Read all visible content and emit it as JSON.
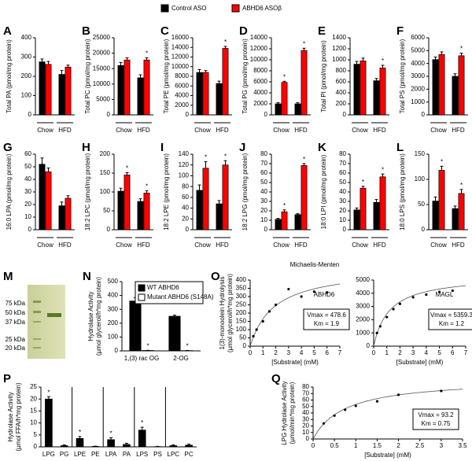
{
  "chart_data": [
    {
      "type": "bar",
      "panel": "A",
      "y_label": [
        "Total PA (pmol/mg protein)"
      ],
      "categories": [
        "Chow",
        "HFD"
      ],
      "series": [
        {
          "name": "Control ASO",
          "color": "#000000",
          "values": [
            275,
            210
          ],
          "errors": [
            15,
            20
          ],
          "significance": [
            null,
            null
          ]
        },
        {
          "name": "ABHD6 ASOβ",
          "color": "#ff0000",
          "values": [
            262,
            248
          ],
          "errors": [
            15,
            10
          ],
          "significance": [
            null,
            null
          ]
        }
      ],
      "ylim": [
        0,
        400
      ],
      "yticks": [
        0,
        100,
        200,
        300,
        400
      ]
    },
    {
      "type": "bar",
      "panel": "B",
      "y_label": [
        "Total PC (pmol/mg protein)"
      ],
      "categories": [
        "Chow",
        "HFD"
      ],
      "series": [
        {
          "name": "Control ASO",
          "color": "#000000",
          "values": [
            16000,
            12000
          ],
          "errors": [
            1000,
            1000
          ],
          "significance": [
            null,
            null
          ]
        },
        {
          "name": "ABHD6 ASOβ",
          "color": "#ff0000",
          "values": [
            17800,
            17800
          ],
          "errors": [
            700,
            700
          ],
          "significance": [
            null,
            "*"
          ]
        }
      ],
      "ylim": [
        0,
        25000
      ],
      "yticks": [
        0,
        5000,
        10000,
        15000,
        20000,
        25000
      ]
    },
    {
      "type": "bar",
      "panel": "C",
      "y_label": [
        "Total PE (pmol/mg protein)"
      ],
      "categories": [
        "Chow",
        "HFD"
      ],
      "series": [
        {
          "name": "Control ASO",
          "color": "#000000",
          "values": [
            8800,
            6500
          ],
          "errors": [
            600,
            500
          ],
          "significance": [
            null,
            null
          ]
        },
        {
          "name": "ABHD6 ASOβ",
          "color": "#ff0000",
          "values": [
            8800,
            13800
          ],
          "errors": [
            400,
            400
          ],
          "significance": [
            null,
            "*"
          ]
        }
      ],
      "ylim": [
        0,
        16000
      ],
      "yticks": [
        0,
        2000,
        4000,
        6000,
        8000,
        10000,
        12000,
        14000,
        16000
      ]
    },
    {
      "type": "bar",
      "panel": "D",
      "y_label": [
        "Total PG (pmol/mg protein)"
      ],
      "categories": [
        "Chow",
        "HFD"
      ],
      "series": [
        {
          "name": "Control ASO",
          "color": "#000000",
          "values": [
            2000,
            2000
          ],
          "errors": [
            200,
            200
          ],
          "significance": [
            null,
            null
          ]
        },
        {
          "name": "ABHD6 ASOβ",
          "color": "#ff0000",
          "values": [
            5900,
            11700
          ],
          "errors": [
            200,
            400
          ],
          "significance": [
            "*",
            "*"
          ]
        }
      ],
      "ylim": [
        0,
        14000
      ],
      "yticks": [
        0,
        2000,
        4000,
        6000,
        8000,
        10000,
        12000,
        14000
      ]
    },
    {
      "type": "bar",
      "panel": "E",
      "y_label": [
        "Total PI (pmol/mg protein)"
      ],
      "categories": [
        "Chow",
        "HFD"
      ],
      "series": [
        {
          "name": "Control ASO",
          "color": "#000000",
          "values": [
            920,
            620
          ],
          "errors": [
            50,
            40
          ],
          "significance": [
            null,
            null
          ]
        },
        {
          "name": "ABHD6 ASOβ",
          "color": "#ff0000",
          "values": [
            980,
            850
          ],
          "errors": [
            50,
            50
          ],
          "significance": [
            null,
            "*"
          ]
        }
      ],
      "ylim": [
        0,
        1400
      ],
      "yticks": [
        0,
        200,
        400,
        600,
        800,
        1000,
        1200,
        1400
      ]
    },
    {
      "type": "bar",
      "panel": "F",
      "y_label": [
        "Total PS (pmol/mg protein)"
      ],
      "categories": [
        "Chow",
        "HFD"
      ],
      "series": [
        {
          "name": "Control ASO",
          "color": "#000000",
          "values": [
            4300,
            3000
          ],
          "errors": [
            200,
            200
          ],
          "significance": [
            null,
            null
          ]
        },
        {
          "name": "ABHD6 ASOβ",
          "color": "#ff0000",
          "values": [
            4700,
            4600
          ],
          "errors": [
            200,
            200
          ],
          "significance": [
            null,
            "*"
          ]
        }
      ],
      "ylim": [
        0,
        6000
      ],
      "yticks": [
        0,
        1000,
        2000,
        3000,
        4000,
        5000,
        6000
      ]
    },
    {
      "type": "bar",
      "panel": "G",
      "y_label": [
        "16:0 LPA (pmol/mg protein)"
      ],
      "categories": [
        "Chow",
        "HFD"
      ],
      "series": [
        {
          "name": "Control ASO",
          "color": "#000000",
          "values": [
            52,
            19
          ],
          "errors": [
            5,
            3
          ],
          "significance": [
            null,
            null
          ]
        },
        {
          "name": "ABHD6 ASOβ",
          "color": "#ff0000",
          "values": [
            46,
            25
          ],
          "errors": [
            3,
            2
          ],
          "significance": [
            null,
            null
          ]
        }
      ],
      "ylim": [
        0,
        60
      ],
      "yticks": [
        0,
        10,
        20,
        30,
        40,
        50,
        60
      ]
    },
    {
      "type": "bar",
      "panel": "H",
      "y_label": [
        "18:2 LPC (pmol/mg protein)"
      ],
      "categories": [
        "Chow",
        "HFD"
      ],
      "series": [
        {
          "name": "Control ASO",
          "color": "#000000",
          "values": [
            102,
            75
          ],
          "errors": [
            8,
            7
          ],
          "significance": [
            null,
            null
          ]
        },
        {
          "name": "ABHD6 ASOβ",
          "color": "#ff0000",
          "values": [
            145,
            97
          ],
          "errors": [
            6,
            6
          ],
          "significance": [
            "*",
            "*"
          ]
        }
      ],
      "ylim": [
        0,
        200
      ],
      "yticks": [
        0,
        50,
        100,
        150,
        200
      ]
    },
    {
      "type": "bar",
      "panel": "I",
      "y_label": [
        "18:2 LPE (pmol/mg protein)"
      ],
      "categories": [
        "Chow",
        "HFD"
      ],
      "series": [
        {
          "name": "Control ASO",
          "color": "#000000",
          "values": [
            73,
            48
          ],
          "errors": [
            10,
            6
          ],
          "significance": [
            null,
            null
          ]
        },
        {
          "name": "ABHD6 ASOβ",
          "color": "#ff0000",
          "values": [
            114,
            120
          ],
          "errors": [
            12,
            8
          ],
          "significance": [
            "*",
            "*"
          ]
        }
      ],
      "ylim": [
        0,
        140
      ],
      "yticks": [
        0,
        20,
        40,
        60,
        80,
        100,
        120,
        140
      ]
    },
    {
      "type": "bar",
      "panel": "J",
      "y_label": [
        "18:2 LPG (pmol/mg protein)"
      ],
      "categories": [
        "Chow",
        "HFD"
      ],
      "series": [
        {
          "name": "Control ASO",
          "color": "#000000",
          "values": [
            11,
            16
          ],
          "errors": [
            1,
            1
          ],
          "significance": [
            null,
            null
          ]
        },
        {
          "name": "ABHD6 ASOβ",
          "color": "#ff0000",
          "values": [
            19,
            68
          ],
          "errors": [
            2,
            2
          ],
          "significance": [
            "*",
            "*"
          ]
        }
      ],
      "ylim": [
        0,
        80
      ],
      "yticks": [
        0,
        10,
        20,
        30,
        40,
        50,
        60,
        70,
        80
      ]
    },
    {
      "type": "bar",
      "panel": "K",
      "y_label": [
        "18:0 LPI (pmol/mg protein)"
      ],
      "categories": [
        "Chow",
        "HFD"
      ],
      "series": [
        {
          "name": "Control ASO",
          "color": "#000000",
          "values": [
            21,
            29
          ],
          "errors": [
            2,
            3
          ],
          "significance": [
            null,
            null
          ]
        },
        {
          "name": "ABHD6 ASOβ",
          "color": "#ff0000",
          "values": [
            44,
            56
          ],
          "errors": [
            2,
            3
          ],
          "significance": [
            "*",
            "*"
          ]
        }
      ],
      "ylim": [
        0,
        80
      ],
      "yticks": [
        0,
        10,
        20,
        30,
        40,
        50,
        60,
        70,
        80
      ]
    },
    {
      "type": "bar",
      "panel": "L",
      "y_label": [
        "18:0 LPS (pmol/mg protein)"
      ],
      "categories": [
        "Chow",
        "HFD"
      ],
      "series": [
        {
          "name": "Control ASO",
          "color": "#000000",
          "values": [
            57,
            42
          ],
          "errors": [
            8,
            5
          ],
          "significance": [
            null,
            null
          ]
        },
        {
          "name": "ABHD6 ASOβ",
          "color": "#ff0000",
          "values": [
            118,
            72
          ],
          "errors": [
            8,
            8
          ],
          "significance": [
            "*",
            "*"
          ]
        }
      ],
      "ylim": [
        0,
        150
      ],
      "yticks": [
        0,
        50,
        100,
        150
      ]
    },
    {
      "type": "bar",
      "panel": "N",
      "y_label": [
        "Hydrolase Activity",
        "(µmol glycerol/h*mg protein)"
      ],
      "categories": [
        "1,(3) rac OG",
        "2-OG"
      ],
      "series": [
        {
          "name": "WT ABHD6",
          "color": "#000000",
          "values": [
            360,
            250
          ],
          "errors": [
            25,
            8
          ],
          "significance": [
            null,
            null
          ]
        },
        {
          "name": "Mutant ABHD6 (S148A)",
          "color": "#ffffff",
          "values": [
            3,
            2
          ],
          "errors": [
            1,
            1
          ],
          "significance": [
            "*",
            "*"
          ]
        }
      ],
      "ylim": [
        0,
        500
      ],
      "yticks": [
        0,
        100,
        200,
        300,
        400,
        500
      ],
      "legend": "upper right"
    },
    {
      "type": "mm",
      "panel": "O",
      "note": "Michaelis-Menten",
      "annotation": "ABHD6",
      "y_label": [
        "1(3)-monoolein Hydrolysis",
        "(µmol glycerol/h*mg protein)"
      ],
      "x_label": "[Substrate] (mM)",
      "x": [
        0.25,
        0.5,
        1,
        1.5,
        2,
        3,
        4,
        5,
        6
      ],
      "values": [
        60,
        100,
        150,
        210,
        250,
        345,
        300,
        330,
        325
      ],
      "color": "#000000",
      "vmax": {
        "value": 478.6,
        "label": "Vmax = 478.6"
      },
      "km": {
        "value": 1.9,
        "label": "Km = 1.9"
      },
      "xlim": [
        0,
        7
      ],
      "xticks": [
        0,
        1,
        2,
        3,
        4,
        5,
        6,
        7
      ],
      "ylim": [
        0,
        400
      ],
      "yticks": [
        0,
        50,
        100,
        150,
        200,
        250,
        300,
        350,
        400
      ]
    },
    {
      "type": "mm",
      "annotation": "MAGL",
      "x_label": "[Substrate] (mM)",
      "x": [
        0.25,
        0.5,
        1,
        1.5,
        2,
        3,
        4,
        5,
        6
      ],
      "values": [
        1000,
        1500,
        2200,
        2800,
        3200,
        3700,
        3900,
        4100,
        4200
      ],
      "color": "#000000",
      "vmax": {
        "value": 5359.3,
        "label": "Vmax = 5359.3"
      },
      "km": {
        "value": 1.2,
        "label": "Km = 1.2"
      },
      "xlim": [
        0,
        7
      ],
      "xticks": [
        0,
        1,
        2,
        3,
        4,
        5,
        6,
        7
      ],
      "ylim": [
        0,
        5000
      ],
      "yticks": [
        0,
        1000,
        2000,
        3000,
        4000,
        5000
      ]
    },
    {
      "type": "bar",
      "panel": "P",
      "y_label": [
        "Hydrolase Activity",
        "(µmol FFA/h*mg protein)"
      ],
      "categories": [
        "LPG",
        "PG",
        "LPE",
        "PE",
        "LPA",
        "PA",
        "LPS",
        "PS",
        "LPC",
        "PC"
      ],
      "values": [
        20,
        0.5,
        3.5,
        0.2,
        3,
        1,
        7,
        0.1,
        0.5,
        0.7
      ],
      "errors": [
        1,
        0.3,
        0.8,
        0.1,
        0.8,
        0.5,
        1.2,
        0.1,
        0.3,
        0.4
      ],
      "significance": [
        "*",
        null,
        "*",
        null,
        "*",
        null,
        "*",
        null,
        null,
        null
      ],
      "color": "#000000",
      "ylim": [
        0,
        25
      ],
      "yticks": [
        0,
        5,
        10,
        15,
        20,
        25
      ]
    },
    {
      "type": "mm",
      "panel": "Q",
      "y_label": [
        "LPG Hydrolase Activity",
        "(µmol/min*mg protein)"
      ],
      "x_label": "[Substrate] (mM)",
      "x": [
        0.25,
        0.5,
        0.75,
        1,
        1.5,
        2,
        3
      ],
      "values": [
        24,
        36,
        45,
        51,
        58,
        68,
        74
      ],
      "color": "#000000",
      "vmax": {
        "value": 93.2,
        "label": "Vmax = 93.2"
      },
      "km": {
        "value": 0.75,
        "label": "Km = 0.75"
      },
      "xlim": [
        0,
        3.5
      ],
      "xticks": [
        0,
        0.5,
        1,
        1.5,
        2,
        2.5,
        3,
        3.5
      ],
      "ylim": [
        0,
        80
      ],
      "yticks": [
        0,
        10,
        20,
        30,
        40,
        50,
        60,
        70,
        80
      ]
    }
  ],
  "gel": {
    "panel": "M",
    "markers": [
      "75 kDa",
      "50 kDa",
      "37 kDa",
      "25 kDa",
      "20 kDa"
    ]
  }
}
